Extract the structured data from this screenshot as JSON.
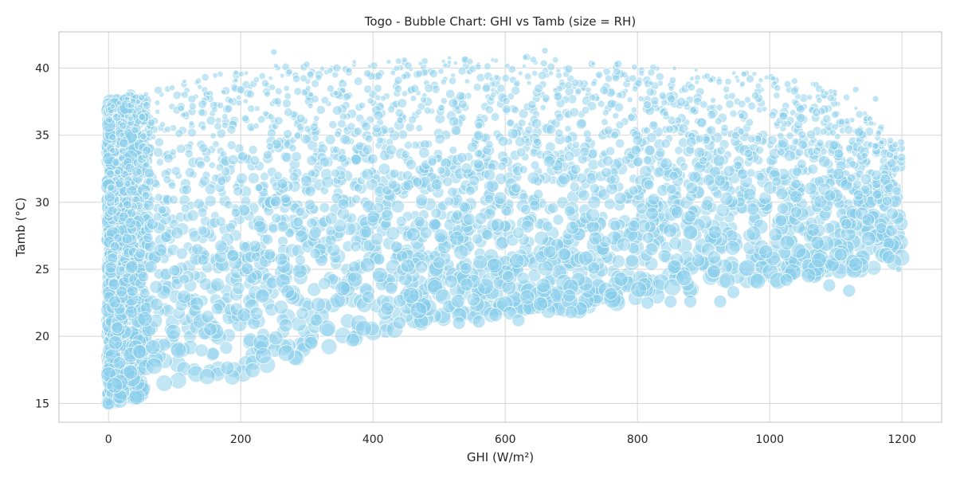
{
  "chart_data": {
    "type": "scatter",
    "title": "Togo - Bubble Chart: GHI vs Tamb (size = RH)",
    "xlabel": "GHI (W/m²)",
    "ylabel": "Tamb (°C)",
    "xlim": [
      -75,
      1260
    ],
    "ylim": [
      13.6,
      42.7
    ],
    "xticks": [
      0,
      200,
      400,
      600,
      800,
      1000,
      1200
    ],
    "yticks": [
      15,
      20,
      25,
      30,
      35,
      40
    ],
    "grid": true,
    "legend": "none",
    "bubble_color": "#87ceeb",
    "size_encoding": "RH",
    "envelope": {
      "ghi": [
        0,
        100,
        200,
        300,
        400,
        500,
        600,
        700,
        800,
        900,
        1000,
        1100,
        1200
      ],
      "tamb_max": [
        37.6,
        39.2,
        40.0,
        40.4,
        40.6,
        40.8,
        41.0,
        40.6,
        40.3,
        40.0,
        39.5,
        38.5,
        34.5
      ],
      "tamb_min": [
        15.0,
        15.8,
        16.8,
        18.5,
        20.2,
        21.0,
        21.2,
        21.8,
        22.8,
        23.5,
        24.0,
        24.5,
        25.5
      ]
    },
    "points": [
      {
        "x": 0,
        "y": 15.0
      },
      {
        "x": 20,
        "y": 25.0
      },
      {
        "x": 50,
        "y": 37.8
      },
      {
        "x": 250,
        "y": 41.2
      },
      {
        "x": 440,
        "y": 21.0
      },
      {
        "x": 530,
        "y": 21.0
      },
      {
        "x": 560,
        "y": 21.1
      },
      {
        "x": 620,
        "y": 21.2
      },
      {
        "x": 700,
        "y": 21.8
      },
      {
        "x": 760,
        "y": 23.2
      },
      {
        "x": 815,
        "y": 22.5
      },
      {
        "x": 850,
        "y": 22.6
      },
      {
        "x": 880,
        "y": 22.6
      },
      {
        "x": 925,
        "y": 22.6
      },
      {
        "x": 945,
        "y": 23.3
      },
      {
        "x": 1025,
        "y": 24.2
      },
      {
        "x": 1090,
        "y": 23.8
      },
      {
        "x": 1120,
        "y": 23.4
      },
      {
        "x": 1160,
        "y": 34.2
      },
      {
        "x": 1190,
        "y": 34.3
      },
      {
        "x": 1195,
        "y": 25.0
      },
      {
        "x": 1130,
        "y": 38.4
      },
      {
        "x": 1160,
        "y": 37.7
      },
      {
        "x": 660,
        "y": 41.3
      }
    ]
  }
}
